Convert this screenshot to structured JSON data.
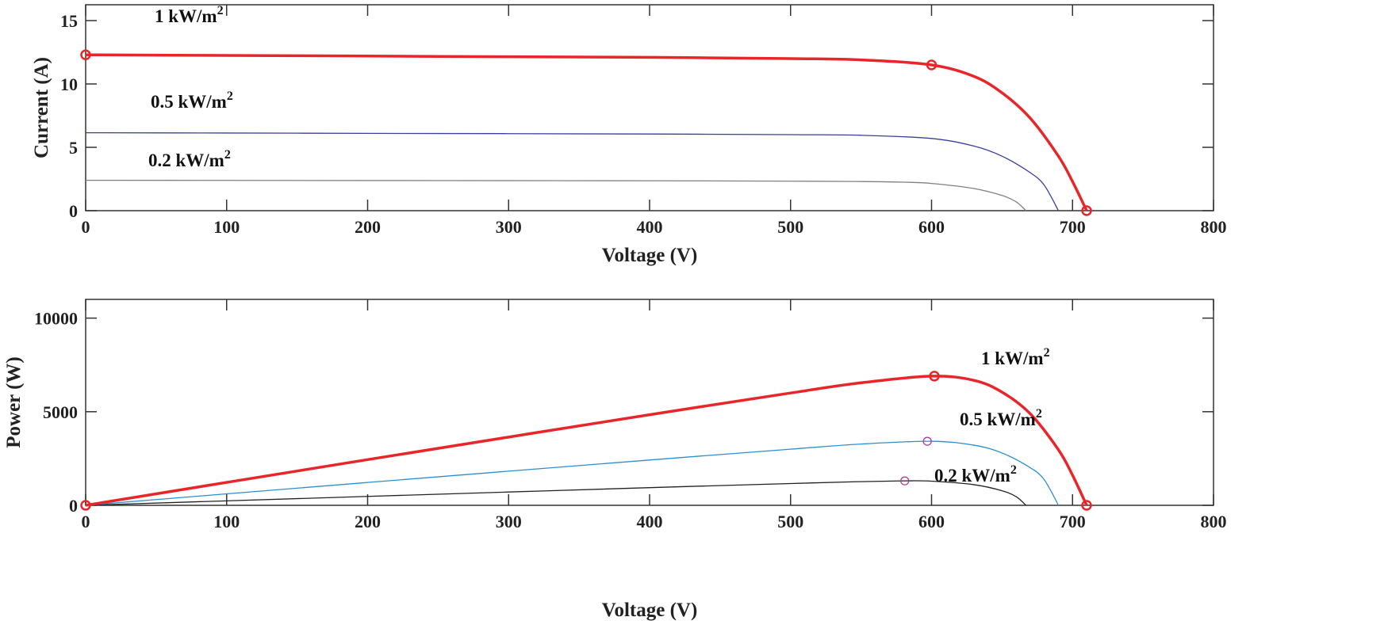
{
  "chart_data": [
    {
      "type": "line",
      "xlabel": "Voltage (V)",
      "ylabel": "Current (A)",
      "xlim": [
        0,
        800
      ],
      "ylim": [
        0,
        16.25
      ],
      "xticks": [
        "0",
        "100",
        "200",
        "300",
        "400",
        "500",
        "600",
        "700",
        "800"
      ],
      "yticks": [
        "0",
        "5",
        "10",
        "15"
      ],
      "grid": false,
      "series": [
        {
          "name": "1 kW/m",
          "sup": "2",
          "color": "#e8262a",
          "width": 3.5,
          "x": [
            0,
            100,
            200,
            300,
            400,
            500,
            550,
            600,
            630,
            650,
            670,
            690,
            700,
            710
          ],
          "y": [
            12.3,
            12.25,
            12.2,
            12.15,
            12.1,
            12.0,
            11.9,
            11.5,
            10.6,
            9.3,
            7.3,
            4.3,
            2.3,
            0
          ],
          "markers": [
            [
              0,
              12.3
            ],
            [
              600,
              11.5
            ],
            [
              710,
              0
            ]
          ],
          "marker_color": "#e8262a"
        },
        {
          "name": "0.5 kW/m",
          "sup": "2",
          "color": "#3b3f9c",
          "width": 1.3,
          "x": [
            0,
            100,
            200,
            300,
            400,
            500,
            550,
            600,
            630,
            650,
            670,
            680,
            690
          ],
          "y": [
            6.15,
            6.13,
            6.1,
            6.08,
            6.05,
            6.0,
            5.95,
            5.7,
            5.1,
            4.3,
            3.0,
            2.0,
            0
          ],
          "markers": []
        },
        {
          "name": "0.2 kW/m",
          "sup": "2",
          "color": "#808080",
          "width": 1.3,
          "x": [
            0,
            100,
            200,
            300,
            400,
            500,
            550,
            580,
            600,
            630,
            650,
            660,
            667
          ],
          "y": [
            2.4,
            2.39,
            2.38,
            2.37,
            2.36,
            2.33,
            2.3,
            2.25,
            2.15,
            1.75,
            1.2,
            0.7,
            0
          ],
          "markers": []
        }
      ]
    },
    {
      "type": "line",
      "xlabel": "Voltage (V)",
      "ylabel": "Power (W)",
      "xlim": [
        0,
        800
      ],
      "ylim": [
        0,
        11000
      ],
      "xticks": [
        "0",
        "100",
        "200",
        "300",
        "400",
        "500",
        "600",
        "700",
        "800"
      ],
      "yticks": [
        "0",
        "5000",
        "10000"
      ],
      "grid": false,
      "series": [
        {
          "name": "1 kW/m",
          "sup": "2",
          "color": "#e8262a",
          "width": 3.5,
          "x": [
            0,
            100,
            200,
            300,
            400,
            500,
            550,
            600,
            630,
            650,
            670,
            690,
            700,
            710
          ],
          "y": [
            0,
            1225,
            2440,
            3645,
            4840,
            6000,
            6545,
            6900,
            6678,
            6045,
            4891,
            2967,
            1610,
            0
          ],
          "markers": [
            [
              0,
              0
            ],
            [
              602,
              6900
            ],
            [
              710,
              0
            ]
          ],
          "marker_color": "#e8262a"
        },
        {
          "name": "0.5 kW/m",
          "sup": "2",
          "color": "#2a8fd0",
          "width": 1.3,
          "x": [
            0,
            100,
            200,
            300,
            400,
            500,
            550,
            600,
            630,
            650,
            670,
            680,
            690
          ],
          "y": [
            0,
            613,
            1220,
            1824,
            2420,
            3000,
            3273,
            3420,
            3213,
            2795,
            2010,
            1360,
            0
          ],
          "markers": [
            [
              597,
              3420
            ]
          ],
          "marker_color": "#b03a9a"
        },
        {
          "name": "0.2 kW/m",
          "sup": "2",
          "color": "#222222",
          "width": 1.3,
          "x": [
            0,
            100,
            200,
            300,
            400,
            500,
            550,
            580,
            600,
            630,
            650,
            660,
            667
          ],
          "y": [
            0,
            239,
            476,
            711,
            944,
            1165,
            1265,
            1305,
            1290,
            1103,
            780,
            462,
            0
          ],
          "markers": [
            [
              581,
              1305
            ]
          ],
          "marker_color": "#b03a9a"
        }
      ]
    }
  ]
}
